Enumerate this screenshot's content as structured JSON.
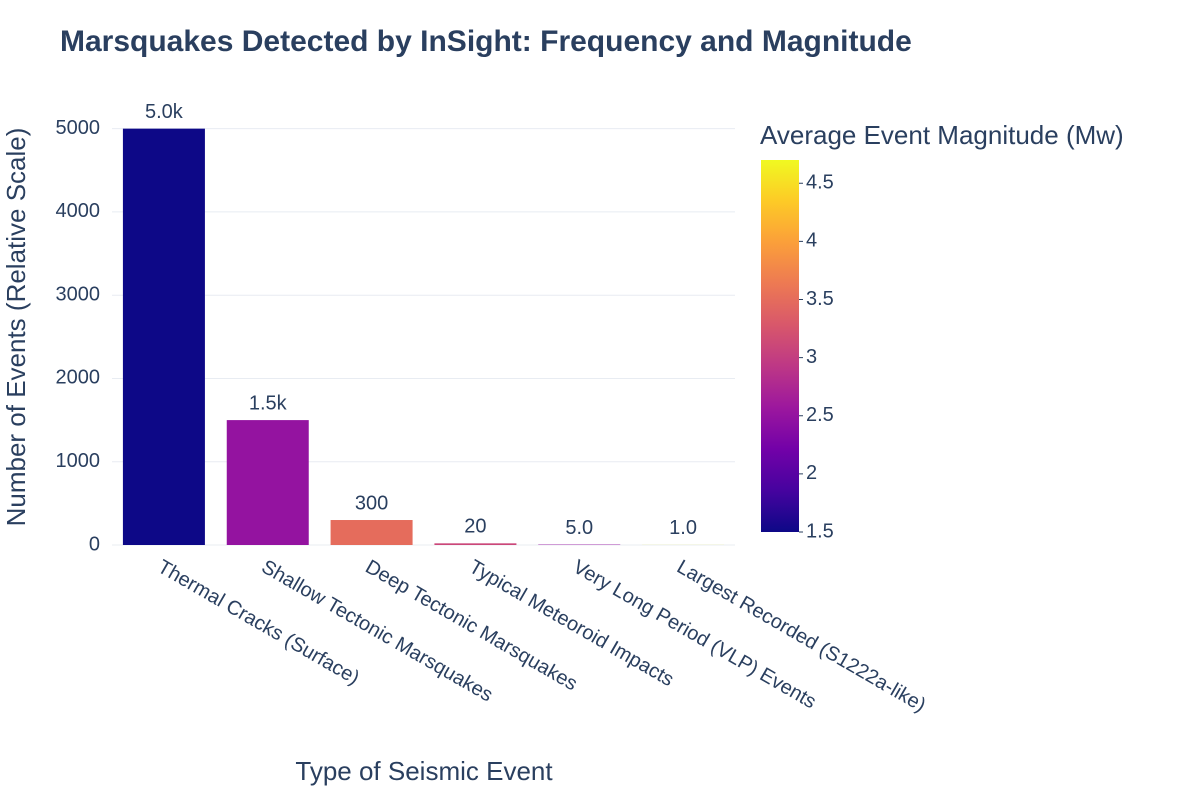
{
  "chart_data": {
    "type": "bar",
    "title": "Marsquakes Detected by InSight: Frequency and Magnitude",
    "x_label": "Type of Seismic Event",
    "y_label": "Number of Events (Relative Scale)",
    "categories": [
      "Thermal Cracks (Surface)",
      "Shallow Tectonic Marsquakes",
      "Deep Tectonic Marsquakes",
      "Typical Meteoroid Impacts",
      "Very Long Period (VLP) Events",
      "Largest Recorded (S1222a-like)"
    ],
    "values": [
      5000,
      1500,
      300,
      20,
      5,
      1
    ],
    "value_labels": [
      "5.0k",
      "1.5k",
      "300",
      "20",
      "5.0",
      "1.0"
    ],
    "magnitudes": [
      1.5,
      2.5,
      3.5,
      3.1,
      2.5,
      4.7
    ],
    "ylim": [
      0,
      5200
    ],
    "yticks": [
      0,
      1000,
      2000,
      3000,
      4000,
      5000
    ],
    "grid": true,
    "colorbar_title": "Average Event Magnitude (Mw)",
    "clim": [
      1.5,
      4.7
    ],
    "cticks": [
      1.5,
      2,
      2.5,
      3,
      3.5,
      4,
      4.5
    ],
    "colorscale": [
      "#0d0887",
      "#46039f",
      "#7201a8",
      "#9c179e",
      "#bd3786",
      "#d8576b",
      "#ed7953",
      "#fb9f3a",
      "#fdca26",
      "#f0f921"
    ]
  }
}
